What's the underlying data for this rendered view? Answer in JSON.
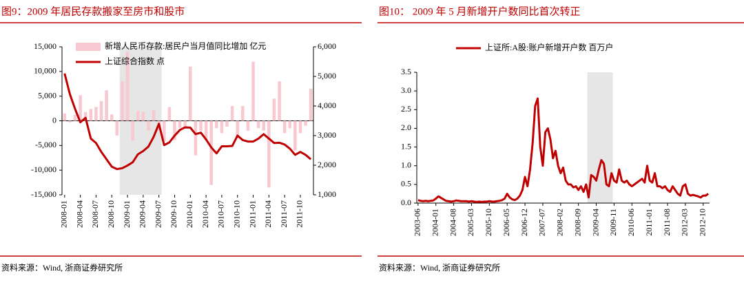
{
  "chart_data": [
    {
      "type": "bar_line",
      "title": "图9：2009 年居民存款搬家至房市和股市",
      "source": "资料来源：Wind, 浙商证券研究所",
      "categories": [
        "2008-01",
        null,
        null,
        "2008-04",
        null,
        null,
        "2008-07",
        null,
        null,
        "2008-10",
        null,
        null,
        "2009-01",
        null,
        null,
        "2009-04",
        null,
        null,
        "2009-07",
        null,
        null,
        "2009-10",
        null,
        null,
        "2010-01",
        null,
        null,
        "2010-04",
        null,
        null,
        "2010-07",
        null,
        null,
        "2010-10",
        null,
        null,
        "2011-01",
        null,
        null,
        "2011-04",
        null,
        null,
        "2011-07",
        null,
        null,
        "2011-10",
        null,
        null
      ],
      "shaded_span": [
        11,
        18
      ],
      "series": [
        {
          "name": "新增人民币存款:居民户当月值同比增加 亿元",
          "color": "#f8c9d0",
          "values": [
            1500,
            -300,
            1200,
            5200,
            1800,
            2400,
            2800,
            4000,
            6200,
            1300,
            -3000,
            8000,
            14000,
            -4000,
            2000,
            1800,
            -2000,
            2200,
            -2000,
            -4200,
            2800,
            -3900,
            -1400,
            -1600,
            11000,
            -7000,
            -2000,
            -4000,
            -13000,
            -1500,
            -2500,
            -1200,
            3000,
            -3500,
            3000,
            -2000,
            12000,
            -1500,
            -2000,
            -13500,
            4500,
            8000,
            -2500,
            -1500,
            -6000,
            -2500,
            -1000,
            6500
          ]
        },
        {
          "name": "上证综合指数 点",
          "color": "#c00000",
          "axis": "y2",
          "values": [
            5100,
            4400,
            3900,
            3450,
            3600,
            2900,
            2750,
            2450,
            2200,
            1950,
            1870,
            1900,
            1990,
            2100,
            2370,
            2480,
            2630,
            2960,
            3400,
            2680,
            2770,
            3000,
            3190,
            3280,
            3270,
            3050,
            3100,
            2870,
            2600,
            2400,
            2640,
            2640,
            2650,
            3000,
            2850,
            2800,
            2800,
            2900,
            3050,
            2900,
            2750,
            2760,
            2700,
            2560,
            2350,
            2450,
            2350,
            2200
          ]
        }
      ],
      "ylim": [
        -15000,
        15000
      ],
      "yticks": [
        {
          "value": -15000,
          "label": "-15,000"
        },
        {
          "value": -10000,
          "label": "-10,000"
        },
        {
          "value": -5000,
          "label": "-5,000"
        },
        0,
        {
          "value": 5000,
          "label": "5,000"
        },
        {
          "value": 10000,
          "label": "10,000"
        },
        {
          "value": 15000,
          "label": "15,000"
        }
      ],
      "y2lim": [
        1000,
        6000
      ],
      "y2ticks": [
        {
          "value": 1000,
          "label": "1,000"
        },
        {
          "value": 2000,
          "label": "2,000"
        },
        {
          "value": 3000,
          "label": "3,000"
        },
        {
          "value": 4000,
          "label": "4,000"
        },
        {
          "value": 5000,
          "label": "5,000"
        },
        {
          "value": 6000,
          "label": "6,000"
        }
      ]
    },
    {
      "type": "line",
      "title": "图10： 2009 年 5 月新增开户数同比首次转正",
      "source": "资料来源：Wind, 浙商证券研究所",
      "categories": [
        "2003-06",
        null,
        null,
        null,
        null,
        null,
        null,
        "2004-01",
        null,
        null,
        null,
        null,
        null,
        null,
        "2004-08",
        null,
        null,
        null,
        null,
        null,
        null,
        "2005-03",
        null,
        null,
        null,
        null,
        null,
        null,
        "2005-10",
        null,
        null,
        null,
        null,
        null,
        null,
        "2006-05",
        null,
        null,
        null,
        null,
        null,
        null,
        "2006-12",
        null,
        null,
        null,
        null,
        null,
        null,
        "2007-07",
        null,
        null,
        null,
        null,
        null,
        null,
        "2008-02",
        null,
        null,
        null,
        null,
        null,
        null,
        "2008-09",
        null,
        null,
        null,
        null,
        null,
        null,
        "2009-04",
        null,
        null,
        null,
        null,
        null,
        null,
        "2009-11",
        null,
        null,
        null,
        null,
        null,
        null,
        "2010-06",
        null,
        null,
        null,
        null,
        null,
        null,
        "2011-01",
        null,
        null,
        null,
        null,
        null,
        null,
        "2011-08",
        null,
        null,
        null,
        null,
        null,
        null,
        "2012-03",
        null,
        null,
        null,
        null,
        null,
        null,
        "2012-10",
        null,
        null
      ],
      "shaded_span": [
        67,
        76
      ],
      "series": [
        {
          "name": "上证所:A股:账户新增开户数 百万户",
          "color": "#c00000",
          "values": [
            0.08,
            0.06,
            0.05,
            0.06,
            0.05,
            0.06,
            0.07,
            0.12,
            0.18,
            0.14,
            0.1,
            0.06,
            0.05,
            0.04,
            0.05,
            0.07,
            0.06,
            0.05,
            0.05,
            0.05,
            0.04,
            0.05,
            0.04,
            0.03,
            0.04,
            0.03,
            0.04,
            0.04,
            0.05,
            0.04,
            0.04,
            0.05,
            0.06,
            0.08,
            0.12,
            0.25,
            0.15,
            0.1,
            0.08,
            0.12,
            0.2,
            0.35,
            0.7,
            0.45,
            0.9,
            1.6,
            2.6,
            2.8,
            1.5,
            1.0,
            1.9,
            2.0,
            1.7,
            1.2,
            1.4,
            1.0,
            0.8,
            0.95,
            0.6,
            0.5,
            0.5,
            0.42,
            0.45,
            0.35,
            0.45,
            0.3,
            0.5,
            0.15,
            0.75,
            0.7,
            0.6,
            0.9,
            1.15,
            1.05,
            0.5,
            0.45,
            0.8,
            0.6,
            0.55,
            0.9,
            0.6,
            0.55,
            0.6,
            0.5,
            0.45,
            0.5,
            0.55,
            0.6,
            0.65,
            0.55,
            1.0,
            0.6,
            0.55,
            0.8,
            0.45,
            0.45,
            0.4,
            0.45,
            0.35,
            0.3,
            0.45,
            0.35,
            0.25,
            0.2,
            0.45,
            0.5,
            0.25,
            0.2,
            0.22,
            0.2,
            0.18,
            0.15,
            0.2,
            0.2,
            0.25
          ]
        }
      ],
      "ylim": [
        0,
        3.5
      ],
      "yticks": [
        {
          "value": 0,
          "label": "0.0"
        },
        0.5,
        {
          "value": 1,
          "label": "1.0"
        },
        1.5,
        {
          "value": 2,
          "label": "2.0"
        },
        2.5,
        {
          "value": 3,
          "label": "3.0"
        },
        3.5
      ]
    }
  ]
}
